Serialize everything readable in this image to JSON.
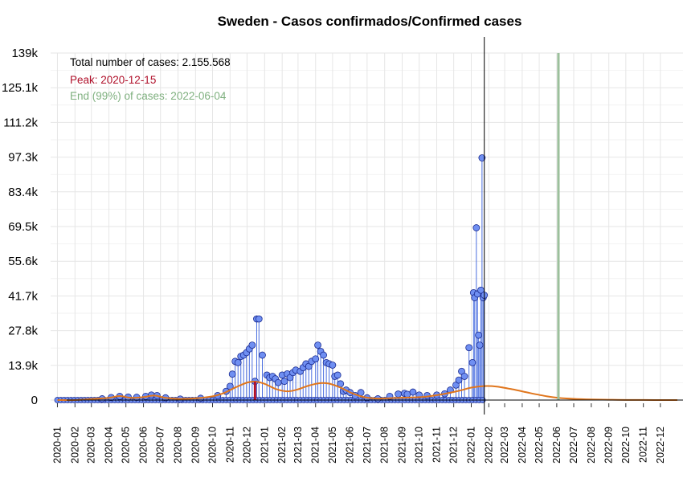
{
  "chart_data": {
    "type": "line",
    "title": "Sweden - Casos confirmados/Confirmed cases",
    "xlabel": "",
    "ylabel": "",
    "x_range": [
      "2019-12-20",
      "2023-01-10"
    ],
    "ylim": [
      0,
      139000
    ],
    "grid": true,
    "yticks": [
      0,
      13900,
      27800,
      41700,
      55600,
      69500,
      83400,
      97300,
      111200,
      125100,
      139000
    ],
    "ytick_labels": [
      "0",
      "13.9k",
      "27.8k",
      "41.7k",
      "55.6k",
      "69.5k",
      "83.4k",
      "97.3k",
      "111.2k",
      "125.1k",
      "139k"
    ],
    "xtick_labels": [
      "2020-01",
      "2020-02",
      "2020-03",
      "2020-04",
      "2020-05",
      "2020-06",
      "2020-07",
      "2020-08",
      "2020-09",
      "2020-10",
      "2020-11",
      "2020-12",
      "2021-01",
      "2021-02",
      "2021-03",
      "2021-04",
      "2021-05",
      "2021-06",
      "2021-07",
      "2021-08",
      "2021-09",
      "2021-10",
      "2021-11",
      "2021-12",
      "2022-01",
      "2022-02",
      "2022-03",
      "2022-04",
      "2022-05",
      "2022-06",
      "2022-07",
      "2022-08",
      "2022-09",
      "2022-10",
      "2022-11",
      "2022-12"
    ],
    "annotations": {
      "total": "Total number of cases: 2.155.568",
      "peak": "Peak: 2020-12-15",
      "end": "End (99%) of cases: 2022-06-04"
    },
    "peak_date": "2020-12-15",
    "end_date": "2022-06-04",
    "today_date": "2022-01-24",
    "colors": {
      "points_fill": "#6f8ff2",
      "points_stroke": "#1a2a8f",
      "stems": "#4a6ee0",
      "fit_curve": "#e0761d",
      "peak_line": "#b0102a",
      "end_line": "#9cc09c",
      "today_line": "#000000",
      "annot_total": "#000000",
      "annot_peak": "#b0102a",
      "annot_end": "#7fb07f",
      "grid": "#e6e6e6"
    },
    "series": [
      {
        "kind": "fit",
        "points": [
          [
            "2020-01-01",
            0
          ],
          [
            "2020-02-01",
            0
          ],
          [
            "2020-03-01",
            400
          ],
          [
            "2020-04-01",
            900
          ],
          [
            "2020-04-20",
            1600
          ],
          [
            "2020-05-10",
            900
          ],
          [
            "2020-06-01",
            1200
          ],
          [
            "2020-06-20",
            1800
          ],
          [
            "2020-07-10",
            900
          ],
          [
            "2020-08-01",
            500
          ],
          [
            "2020-09-01",
            700
          ],
          [
            "2020-10-01",
            1500
          ],
          [
            "2020-10-20",
            2700
          ],
          [
            "2020-11-10",
            5000
          ],
          [
            "2020-12-01",
            7000
          ],
          [
            "2020-12-15",
            7400
          ],
          [
            "2021-01-01",
            6500
          ],
          [
            "2021-01-20",
            4500
          ],
          [
            "2021-02-10",
            3500
          ],
          [
            "2021-03-01",
            4300
          ],
          [
            "2021-03-20",
            5800
          ],
          [
            "2021-04-10",
            6800
          ],
          [
            "2021-04-25",
            6600
          ],
          [
            "2021-05-15",
            5000
          ],
          [
            "2021-06-05",
            2700
          ],
          [
            "2021-06-25",
            1200
          ],
          [
            "2021-07-20",
            600
          ],
          [
            "2021-08-15",
            800
          ],
          [
            "2021-09-10",
            1000
          ],
          [
            "2021-10-10",
            1300
          ],
          [
            "2021-11-10",
            2300
          ],
          [
            "2021-12-10",
            3700
          ],
          [
            "2022-01-01",
            5000
          ],
          [
            "2022-01-24",
            5600
          ],
          [
            "2022-02-15",
            5400
          ],
          [
            "2022-03-15",
            4300
          ],
          [
            "2022-04-15",
            2800
          ],
          [
            "2022-05-15",
            1500
          ],
          [
            "2022-06-04",
            900
          ],
          [
            "2022-07-01",
            500
          ],
          [
            "2022-08-01",
            250
          ],
          [
            "2022-09-01",
            120
          ],
          [
            "2022-10-01",
            60
          ],
          [
            "2022-11-01",
            25
          ],
          [
            "2022-12-01",
            10
          ],
          [
            "2022-12-31",
            0
          ]
        ]
      },
      {
        "kind": "daily",
        "points": [
          [
            "2020-03-20",
            500
          ],
          [
            "2020-04-05",
            1000
          ],
          [
            "2020-04-20",
            1500
          ],
          [
            "2020-05-05",
            1200
          ],
          [
            "2020-05-20",
            1100
          ],
          [
            "2020-06-05",
            1500
          ],
          [
            "2020-06-15",
            2000
          ],
          [
            "2020-06-25",
            1800
          ],
          [
            "2020-07-10",
            900
          ],
          [
            "2020-08-05",
            400
          ],
          [
            "2020-09-10",
            700
          ],
          [
            "2020-10-10",
            1800
          ],
          [
            "2020-10-25",
            3500
          ],
          [
            "2020-11-01",
            5500
          ],
          [
            "2020-11-05",
            10400
          ],
          [
            "2020-11-10",
            15500
          ],
          [
            "2020-11-15",
            15000
          ],
          [
            "2020-11-20",
            17500
          ],
          [
            "2020-11-25",
            18000
          ],
          [
            "2020-11-30",
            19000
          ],
          [
            "2020-12-05",
            20500
          ],
          [
            "2020-12-10",
            22000
          ],
          [
            "2020-12-15",
            7500
          ],
          [
            "2020-12-18",
            32500
          ],
          [
            "2020-12-22",
            32500
          ],
          [
            "2020-12-28",
            18000
          ],
          [
            "2021-01-05",
            10000
          ],
          [
            "2021-01-10",
            9000
          ],
          [
            "2021-01-15",
            9500
          ],
          [
            "2021-01-20",
            8500
          ],
          [
            "2021-01-25",
            7000
          ],
          [
            "2021-02-01",
            10000
          ],
          [
            "2021-02-05",
            7500
          ],
          [
            "2021-02-10",
            10500
          ],
          [
            "2021-02-15",
            9000
          ],
          [
            "2021-02-20",
            11000
          ],
          [
            "2021-02-25",
            12000
          ],
          [
            "2021-03-05",
            11500
          ],
          [
            "2021-03-10",
            13000
          ],
          [
            "2021-03-15",
            14500
          ],
          [
            "2021-03-20",
            13500
          ],
          [
            "2021-03-25",
            15500
          ],
          [
            "2021-04-01",
            16500
          ],
          [
            "2021-04-05",
            22000
          ],
          [
            "2021-04-10",
            19500
          ],
          [
            "2021-04-15",
            18000
          ],
          [
            "2021-04-20",
            15000
          ],
          [
            "2021-04-25",
            14500
          ],
          [
            "2021-05-01",
            14000
          ],
          [
            "2021-05-05",
            9500
          ],
          [
            "2021-05-10",
            10000
          ],
          [
            "2021-05-15",
            6500
          ],
          [
            "2021-05-20",
            3500
          ],
          [
            "2021-05-25",
            4000
          ],
          [
            "2021-06-01",
            3000
          ],
          [
            "2021-06-10",
            1800
          ],
          [
            "2021-06-20",
            3000
          ],
          [
            "2021-07-01",
            900
          ],
          [
            "2021-07-20",
            500
          ],
          [
            "2021-08-10",
            1500
          ],
          [
            "2021-08-25",
            2400
          ],
          [
            "2021-09-05",
            2700
          ],
          [
            "2021-09-10",
            2300
          ],
          [
            "2021-09-20",
            3200
          ],
          [
            "2021-10-01",
            2000
          ],
          [
            "2021-10-15",
            1800
          ],
          [
            "2021-11-01",
            2000
          ],
          [
            "2021-11-15",
            2500
          ],
          [
            "2021-11-25",
            4000
          ],
          [
            "2021-12-05",
            6000
          ],
          [
            "2021-12-10",
            8000
          ],
          [
            "2021-12-15",
            11500
          ],
          [
            "2021-12-20",
            9500
          ],
          [
            "2021-12-28",
            21000
          ],
          [
            "2022-01-03",
            15000
          ],
          [
            "2022-01-05",
            43000
          ],
          [
            "2022-01-07",
            41000
          ],
          [
            "2022-01-10",
            69000
          ],
          [
            "2022-01-12",
            42500
          ],
          [
            "2022-01-14",
            26000
          ],
          [
            "2022-01-16",
            22000
          ],
          [
            "2022-01-18",
            44000
          ],
          [
            "2022-01-20",
            97000
          ],
          [
            "2022-01-22",
            41000
          ],
          [
            "2022-01-24",
            42000
          ]
        ]
      }
    ]
  }
}
